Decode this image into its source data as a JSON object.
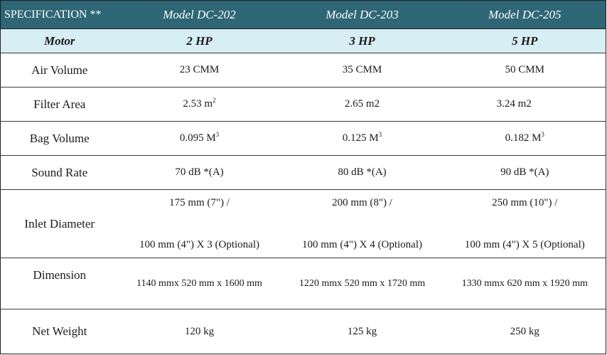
{
  "header": {
    "spec_label": "SPECIFICATION **",
    "models": [
      "Model DC-202",
      "Model DC-203",
      "Model DC-205"
    ]
  },
  "motor": {
    "label": "Motor",
    "values": [
      "2 HP",
      "3 HP",
      "5 HP"
    ]
  },
  "rows": {
    "air_volume": {
      "label": "Air Volume",
      "values": [
        "23 CMM",
        "35 CMM",
        "50 CMM"
      ]
    },
    "filter_area": {
      "label": "Filter Area",
      "values": [
        "2.53 m",
        "2.65 m2",
        "3.24 m2"
      ],
      "sup": [
        "2",
        "",
        ""
      ]
    },
    "bag_volume": {
      "label": "Bag Volume",
      "values": [
        "0.095 M",
        "0.125 M",
        "0.182 M"
      ],
      "sup": [
        "3",
        "3",
        "3"
      ]
    },
    "sound_rate": {
      "label": "Sound Rate",
      "values": [
        "70 dB *(A)",
        "80 dB *(A)",
        "90 dB *(A)"
      ]
    },
    "inlet_diameter": {
      "label": "Inlet Diameter",
      "line1": [
        "175 mm (7\") /",
        "200 mm (8\") /",
        "250 mm (10\") /"
      ],
      "line2": [
        "100 mm (4\") X 3 (Optional)",
        "100 mm (4\") X 4 (Optional)",
        "100 mm (4\") X 5 (Optional)"
      ]
    },
    "dimension": {
      "label": "Dimension",
      "values": [
        "1140 mmx 520 mm x 1600 mm",
        "1220 mmx 520 mm x 1720 mm",
        "1330 mmx 620 mm x 1920 mm"
      ]
    },
    "net_weight": {
      "label": "Net Weight",
      "values": [
        "120 kg",
        "125 kg",
        "250 kg"
      ]
    }
  }
}
